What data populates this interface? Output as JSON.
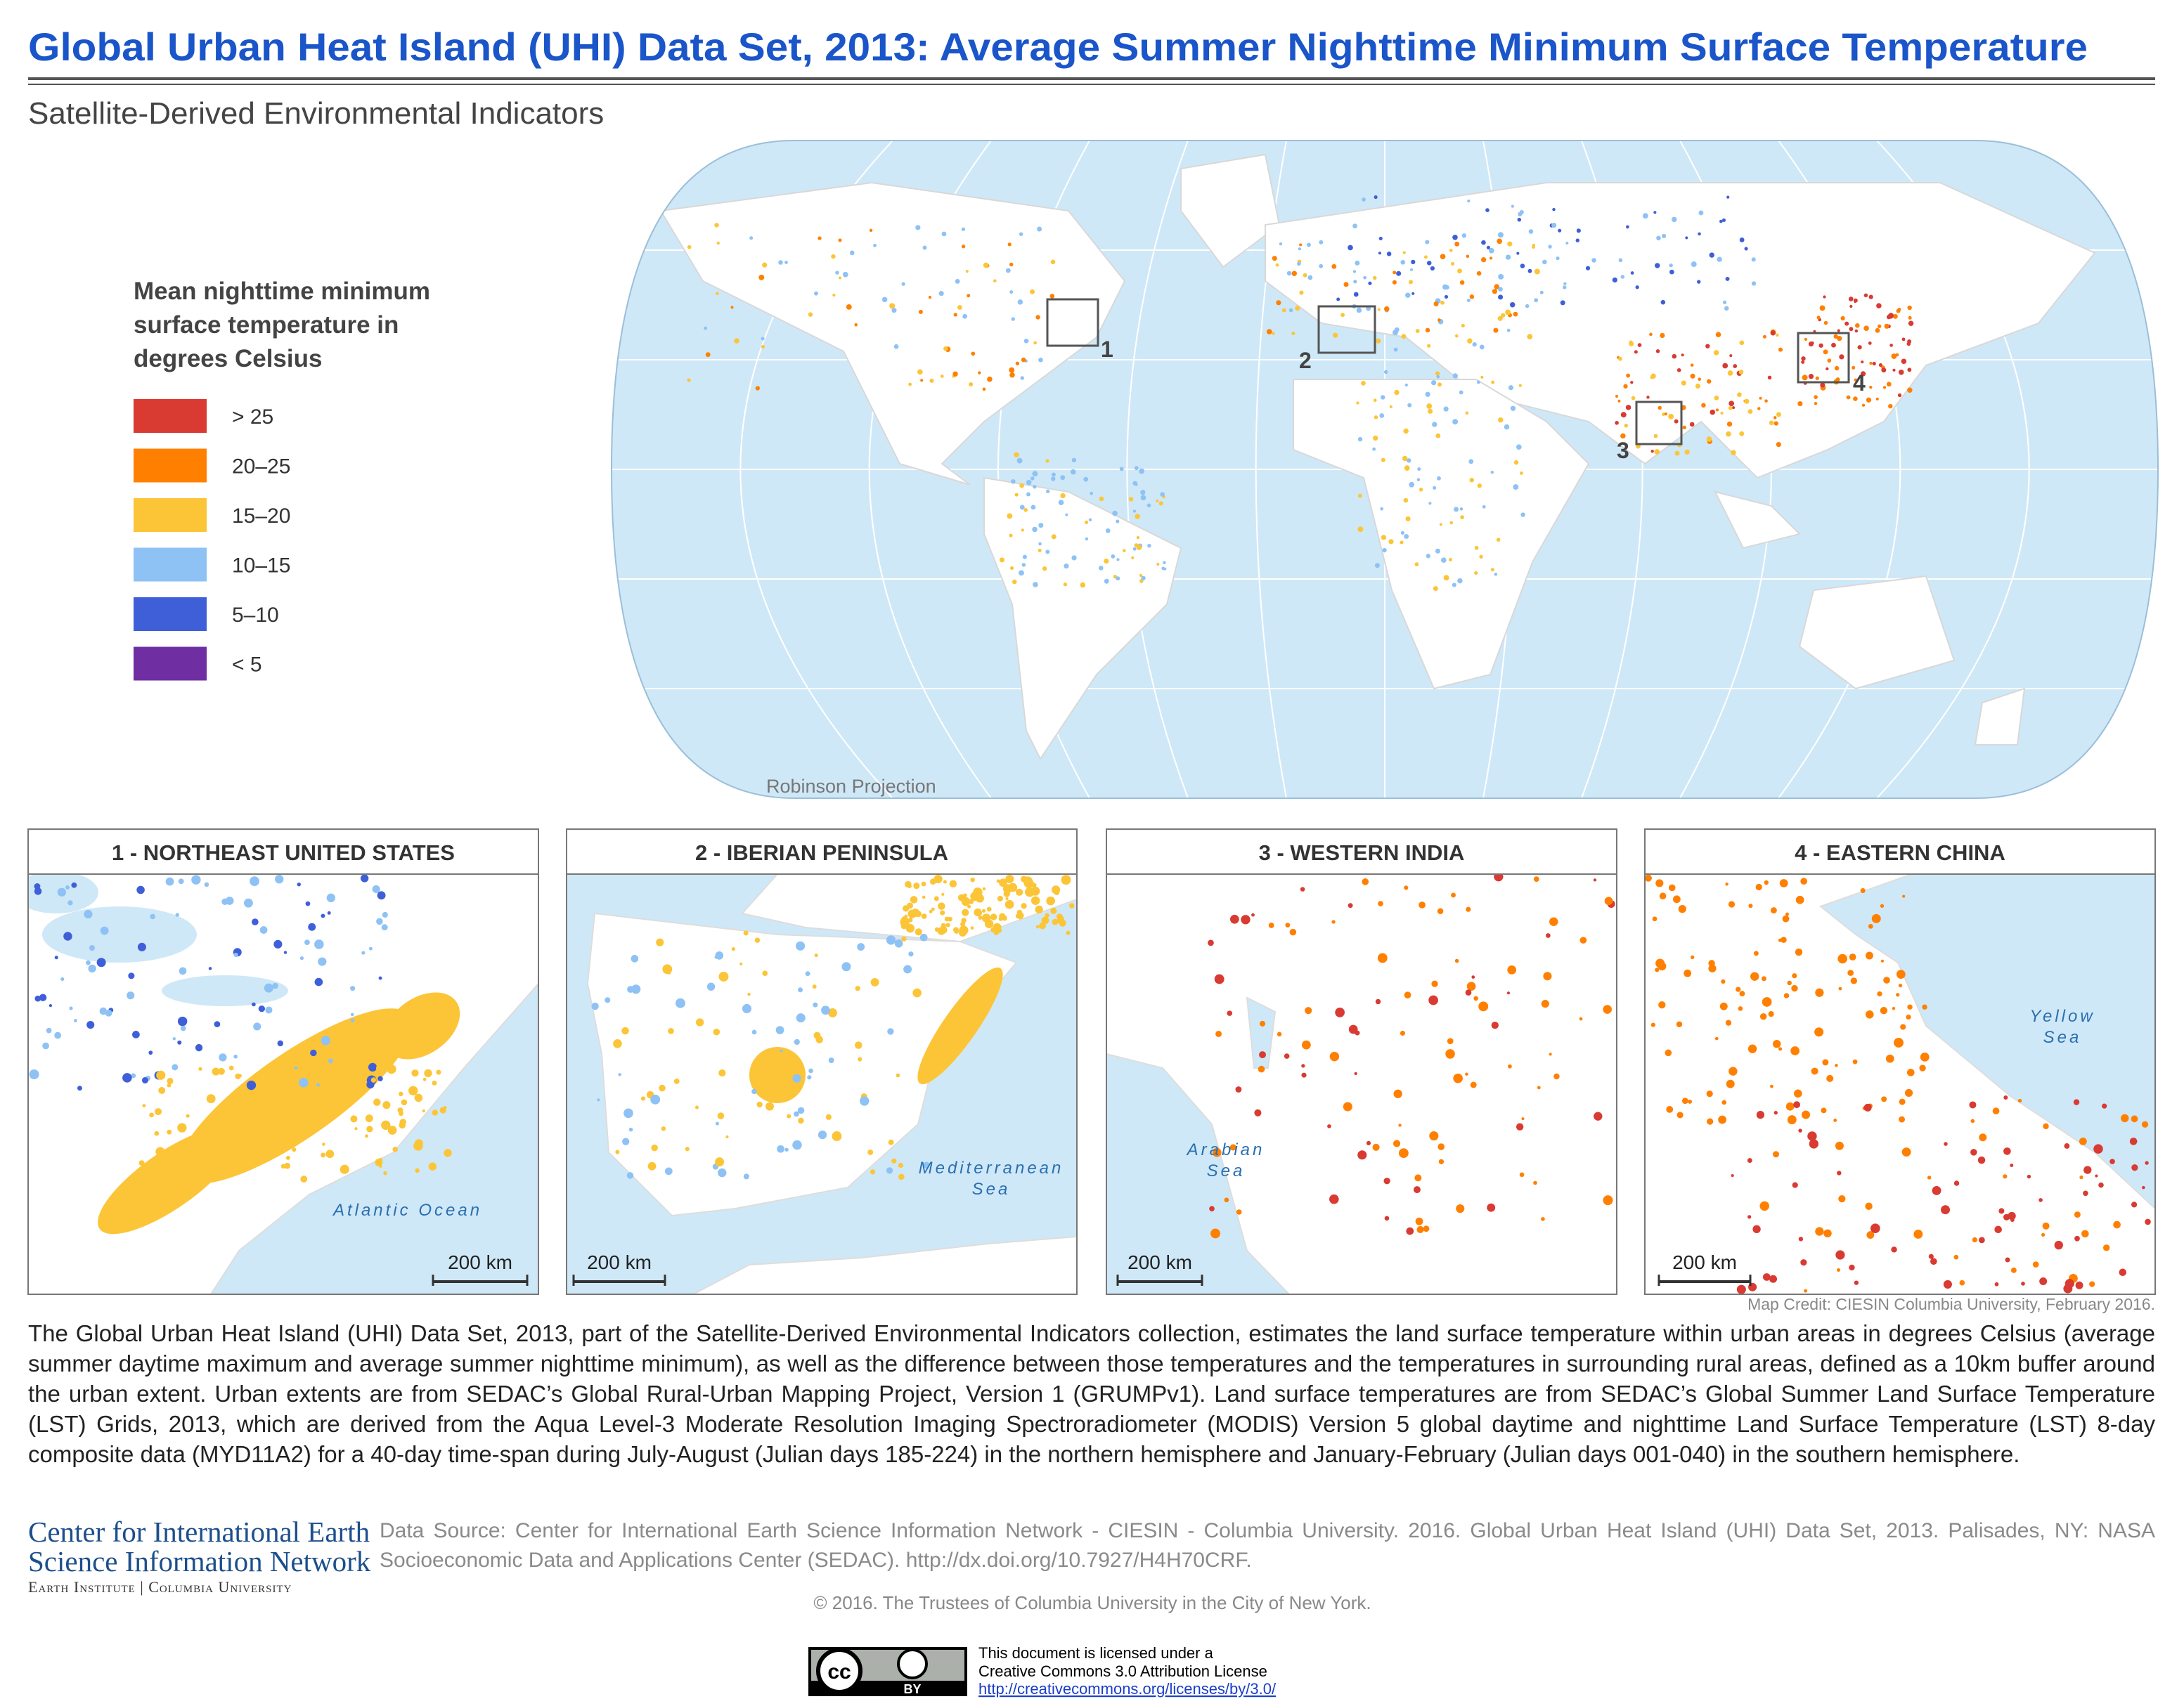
{
  "header": {
    "title": "Global Urban Heat Island (UHI) Data Set, 2013: Average Summer Nighttime Minimum Surface Temperature",
    "subtitle": "Satellite-Derived Environmental Indicators"
  },
  "legend": {
    "title": [
      "Mean nighttime minimum",
      "surface temperature in",
      "degrees Celsius"
    ],
    "items": [
      {
        "label": "> 25",
        "color": "#d93a32"
      },
      {
        "label": "20–25",
        "color": "#ff8000"
      },
      {
        "label": "15–20",
        "color": "#fcc537"
      },
      {
        "label": "10–15",
        "color": "#8ec2f5"
      },
      {
        "label": "5–10",
        "color": "#3f5fd9"
      },
      {
        "label": "< 5",
        "color": "#6f2fa3"
      }
    ]
  },
  "main_map": {
    "projection": "Robinson Projection",
    "boxes": [
      "1",
      "2",
      "3",
      "4"
    ]
  },
  "insets": [
    {
      "title": "1  -  NORTHEAST UNITED STATES",
      "water_label": [
        "Atlantic Ocean"
      ],
      "scale": "200 km"
    },
    {
      "title": "2  -  IBERIAN PENINSULA",
      "water_label": [
        "Mediterranean",
        "Sea"
      ],
      "scale": "200 km"
    },
    {
      "title": "3  -  WESTERN INDIA",
      "water_label": [
        "Arabian",
        "Sea"
      ],
      "scale": "200 km"
    },
    {
      "title": "4  -  EASTERN CHINA",
      "water_label": [
        "Yellow",
        "Sea"
      ],
      "scale": "200 km"
    }
  ],
  "map_credit": "Map Credit: CIESIN Columbia University, February 2016.",
  "description": "The Global Urban Heat Island (UHI) Data Set, 2013, part of the Satellite-Derived Environmental Indicators collection, estimates the land surface temperature within urban areas in degrees Celsius (average summer daytime maximum and average summer nighttime minimum), as well as the difference between those temperatures and the temperatures in surrounding rural areas, defined as a 10km buffer around the urban extent. Urban extents are from SEDAC’s Global Rural-Urban Mapping Project, Version 1 (GRUMPv1). Land surface temperatures are from SEDAC’s Global Summer Land Surface Temperature (LST) Grids, 2013, which are derived from the Aqua Level-3 Moderate Resolution Imaging Spectroradiometer (MODIS) Version 5 global daytime and nighttime Land Surface Temperature (LST) 8-day composite data (MYD11A2) for a 40-day time-span during July-August (Julian days 185-224) in the northern hemisphere and January-February (Julian days 001-040) in the southern hemisphere.",
  "footer": {
    "logo": [
      "Center for International Earth",
      "Science Information Network",
      "Earth Institute | Columbia University"
    ],
    "data_source": "Data Source: Center for International Earth Science Information Network - CIESIN - Columbia University. 2016. Global Urban Heat Island (UHI) Data Set, 2013. Palisades, NY: NASA Socioeconomic Data and Applications Center (SEDAC). http://dx.doi.org/10.7927/H4H70CRF.",
    "copyright": "© 2016. The Trustees of Columbia University in the City of New York.",
    "cc_badge": [
      "cc",
      "BY"
    ],
    "license": [
      "This document is licensed under a",
      "Creative Commons 3.0 Attribution License",
      "http://creativecommons.org/licenses/by/3.0/"
    ]
  }
}
